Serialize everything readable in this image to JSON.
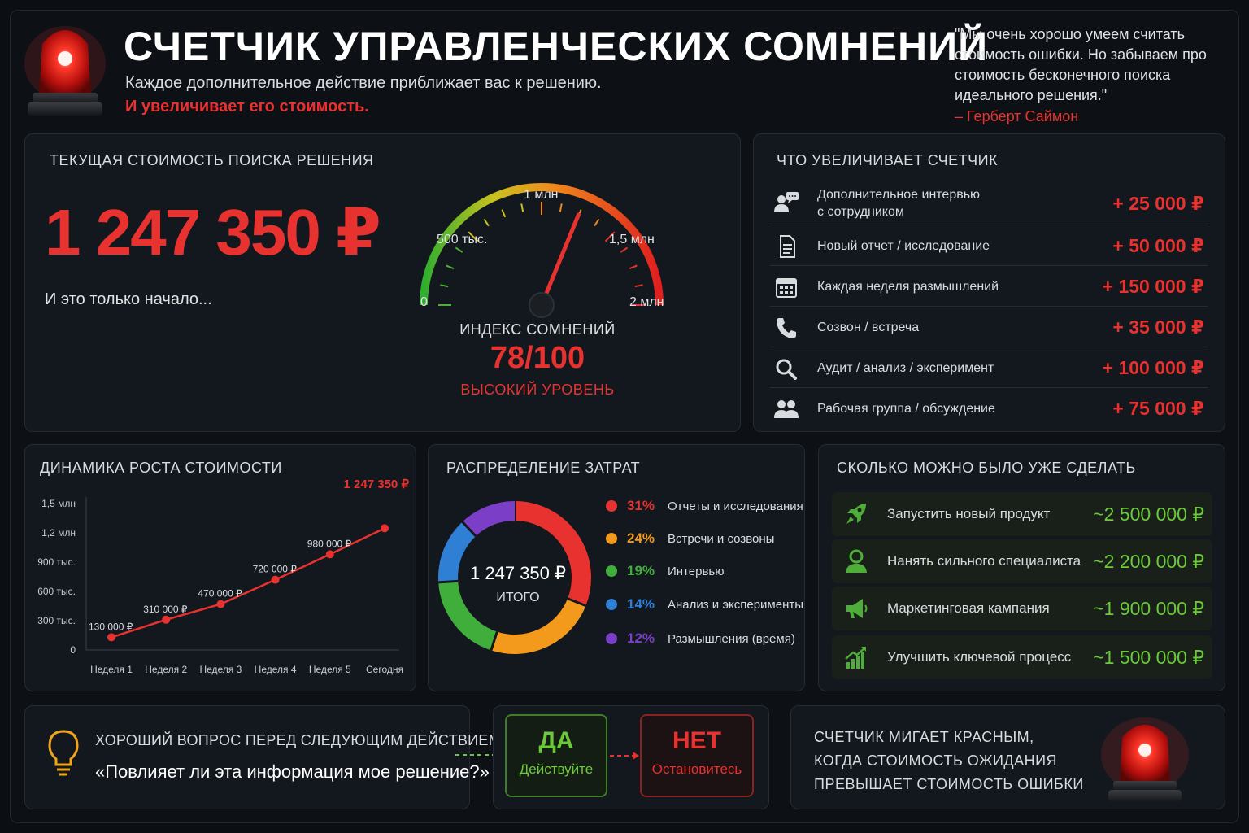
{
  "header": {
    "title": "СЧЕТЧИК УПРАВЛЕНЧЕСКИХ СОМНЕНИЙ",
    "subtitle": "Каждое дополнительное действие приближает вас к решению.",
    "subtitle_red": "И увеличивает его стоимость.",
    "quote": "\"Мы очень хорошо умеем считать стоимость ошибки. Но забываем про стоимость бесконечного поиска идеального решения.\"",
    "quote_author": "– Герберт Саймон",
    "beacon_icon": "siren-icon"
  },
  "cost_panel": {
    "title": "ТЕКУЩАЯ СТОИМОСТЬ ПОИСКА РЕШЕНИЯ",
    "value": "1 247 350 ₽",
    "note": "И это только начало...",
    "gauge": {
      "labels": {
        "zero": "0",
        "half_million": "500 тыс.",
        "one_million": "1 млн",
        "one_half_million": "1,5 млн",
        "two_million": "2 млн"
      },
      "min": 0,
      "max": 2000000,
      "reading": 1247350
    },
    "index_title": "ИНДЕКС СОМНЕНИЙ",
    "index_value": "78/100",
    "index_level": "ВЫСОКИЙ УРОВЕНЬ"
  },
  "increments": {
    "title": "ЧТО УВЕЛИЧИВАЕТ СЧЕТЧИК",
    "items": [
      {
        "icon": "interview-icon",
        "label": "Дополнительное интервью",
        "label2": "с сотрудником",
        "value": "+ 25 000 ₽"
      },
      {
        "icon": "document-icon",
        "label": "Новый отчет / исследование",
        "label2": "",
        "value": "+ 50 000 ₽"
      },
      {
        "icon": "calendar-icon",
        "label": "Каждая неделя размышлений",
        "label2": "",
        "value": "+ 150 000 ₽"
      },
      {
        "icon": "phone-icon",
        "label": "Созвон / встреча",
        "label2": "",
        "value": "+ 35 000 ₽"
      },
      {
        "icon": "search-icon",
        "label": "Аудит / анализ / эксперимент",
        "label2": "",
        "value": "+ 100 000 ₽"
      },
      {
        "icon": "group-icon",
        "label": "Рабочая группа / обсуждение",
        "label2": "",
        "value": "+ 75 000 ₽"
      }
    ]
  },
  "growth": {
    "title": "ДИНАМИКА РОСТА СТОИМОСТИ",
    "final_label": "1 247 350 ₽"
  },
  "chart_data": {
    "type": "line",
    "title": "ДИНАМИКА РОСТА СТОИМОСТИ",
    "xlabel": "",
    "ylabel": "",
    "categories": [
      "Неделя 1",
      "Неделя 2",
      "Неделя 3",
      "Неделя 4",
      "Неделя 5",
      "Сегодня"
    ],
    "values": [
      130000,
      310000,
      470000,
      720000,
      980000,
      1247350
    ],
    "data_labels": [
      "130 000 ₽",
      "310 000 ₽",
      "470 000 ₽",
      "720 000 ₽",
      "980 000 ₽",
      "1 247 350 ₽"
    ],
    "ylim": [
      0,
      1500000
    ],
    "yticks": [
      0,
      300000,
      600000,
      900000,
      1200000,
      1500000
    ],
    "ytick_labels": [
      "0",
      "300 тыс.",
      "600 тыс.",
      "900 тыс.",
      "1,2 млн",
      "1,5 млн"
    ],
    "grid": false,
    "color": "#e8322f"
  },
  "distribution": {
    "title": "РАСПРЕДЕЛЕНИЕ ЗАТРАТ",
    "total": "1 247 350 ₽",
    "total_label": "ИТОГО",
    "items": [
      {
        "pct": "31%",
        "value": 31,
        "label": "Отчеты и исследования",
        "color": "#e8322f"
      },
      {
        "pct": "24%",
        "value": 24,
        "label": "Встречи и созвоны",
        "color": "#f39a1c"
      },
      {
        "pct": "19%",
        "value": 19,
        "label": "Интервью",
        "color": "#3fae3a"
      },
      {
        "pct": "14%",
        "value": 14,
        "label": "Анализ и эксперименты",
        "color": "#2f7fd4"
      },
      {
        "pct": "12%",
        "value": 12,
        "label": "Размышления (время)",
        "color": "#7a3fc6"
      }
    ]
  },
  "alternatives": {
    "title": "СКОЛЬКО МОЖНО БЫЛО УЖЕ СДЕЛАТЬ",
    "items": [
      {
        "icon": "rocket-icon",
        "label": "Запустить новый продукт",
        "value": "~2 500 000 ₽"
      },
      {
        "icon": "specialist-icon",
        "label": "Нанять сильного специалиста",
        "value": "~2 200 000 ₽"
      },
      {
        "icon": "megaphone-icon",
        "label": "Маркетинговая кампания",
        "value": "~1 900 000 ₽"
      },
      {
        "icon": "growth-chart-icon",
        "label": "Улучшить ключевой процесс",
        "value": "~1 500 000 ₽"
      }
    ]
  },
  "question": {
    "icon": "lightbulb-icon",
    "title": "ХОРОШИЙ ВОПРОС ПЕРЕД СЛЕДУЮЩИМ ДЕЙСТВИЕМ",
    "text": "«Повлияет ли эта информация мое решение?»"
  },
  "choices": {
    "yes": {
      "main": "ДА",
      "sub": "Действуйте",
      "color": "#6cc93a"
    },
    "no": {
      "main": "НЕТ",
      "sub": "Остановитесь",
      "color": "#e8322f"
    }
  },
  "warning": {
    "line1": "СЧЕТЧИК МИГАЕТ КРАСНЫМ,",
    "line2": "КОГДА СТОИМОСТЬ ОЖИДАНИЯ",
    "line3": "ПРЕВЫШАЕТ СТОИМОСТЬ ОШИБКИ",
    "icon": "siren-icon"
  }
}
